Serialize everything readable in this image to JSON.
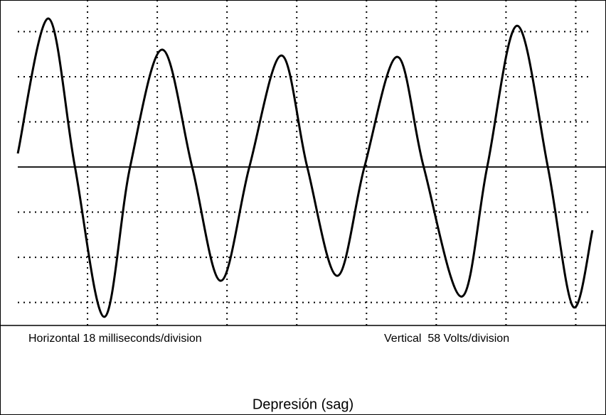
{
  "chart_data": {
    "type": "line",
    "title": "Depresión (sag)",
    "annotations": [
      "Horizontal 18 milliseconds/division",
      "Vertical  58 Volts/division"
    ],
    "x": [
      0,
      0.44,
      0.82,
      1.24,
      1.61,
      2.07,
      2.5,
      2.91,
      3.32,
      3.78,
      4.15,
      4.58,
      4.97,
      5.44,
      5.82,
      6.36,
      6.73,
      7.16,
      7.6,
      7.96,
      8.24
    ],
    "values": [
      0.3,
      3.29,
      0,
      -3.32,
      0,
      2.6,
      0,
      -2.52,
      0,
      2.47,
      0,
      -2.41,
      0,
      2.44,
      0,
      -2.87,
      0,
      3.13,
      0,
      -3.09,
      -1.4
    ],
    "color": "#000000",
    "xlim": [
      0,
      8.24
    ],
    "ylim": [
      -3.51,
      3.7
    ],
    "xticks": [
      1,
      2,
      3,
      4,
      5,
      6,
      7,
      8
    ],
    "yticks": [
      -3,
      -2,
      -1,
      0,
      1,
      2,
      3
    ],
    "grid": true
  }
}
